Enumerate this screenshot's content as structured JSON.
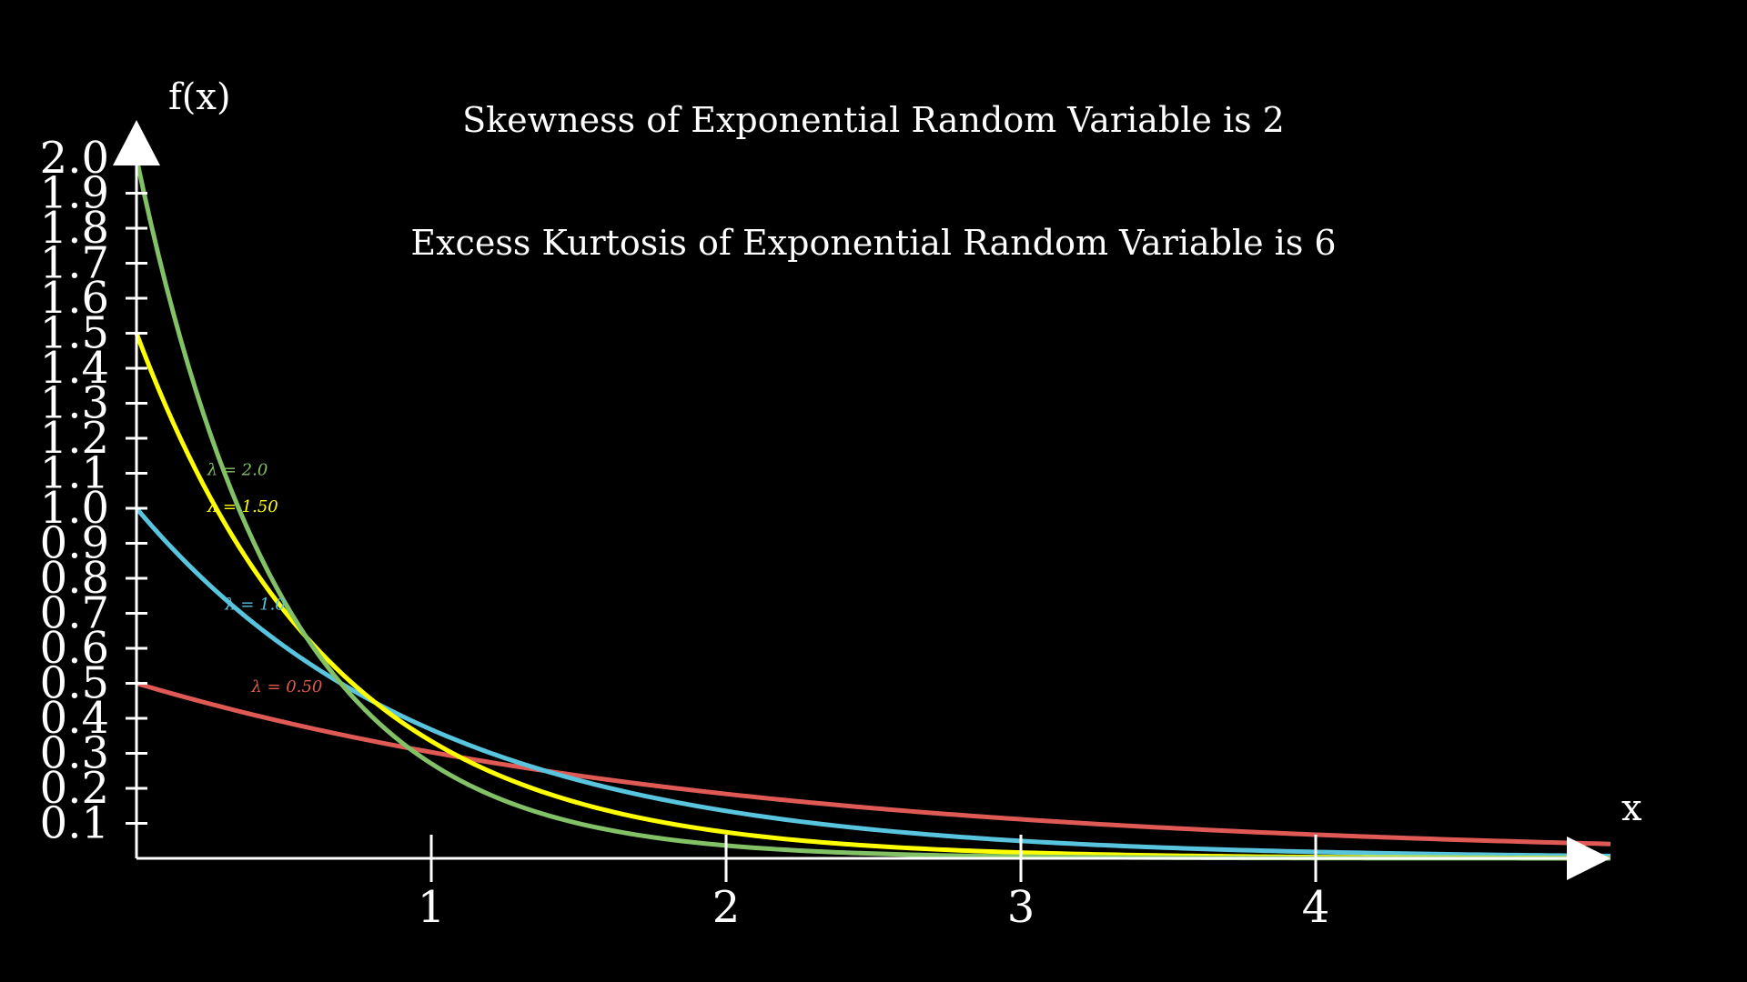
{
  "chart_data": {
    "type": "line",
    "titles": [
      "Skewness of Exponential Random Variable is 2",
      "Excess Kurtosis of Exponential Random Variable is 6"
    ],
    "xlabel": "x",
    "ylabel": "f(x)",
    "xlim": [
      0,
      5
    ],
    "ylim": [
      0,
      2.0
    ],
    "x_ticks": [
      1,
      2,
      3,
      4
    ],
    "x_tick_labels": [
      "1",
      "2",
      "3",
      "4"
    ],
    "y_ticks": [
      0.1,
      0.2,
      0.3,
      0.4,
      0.5,
      0.6,
      0.7,
      0.8,
      0.9,
      1.0,
      1.1,
      1.2,
      1.3,
      1.4,
      1.5,
      1.6,
      1.7,
      1.8,
      1.9,
      2.0
    ],
    "y_tick_labels": [
      "0.1",
      "0.2",
      "0.3",
      "0.4",
      "0.5",
      "0.6",
      "0.7",
      "0.8",
      "0.9",
      "1.0",
      "1.1",
      "1.2",
      "1.3",
      "1.4",
      "1.5",
      "1.6",
      "1.7",
      "1.8",
      "1.9",
      "2.0"
    ],
    "grid": false,
    "legend": "inline labels near curves",
    "series": [
      {
        "name": "λ = 0.50",
        "lambda": 0.5,
        "color": "#e05a55"
      },
      {
        "name": "λ = 1.0",
        "lambda": 1.0,
        "color": "#58c4dd"
      },
      {
        "name": "λ = 1.50",
        "lambda": 1.5,
        "color": "#ffff00"
      },
      {
        "name": "λ = 2.0",
        "lambda": 2.0,
        "color": "#83c167"
      }
    ],
    "function": "f(x) = λ·e^(−λx)",
    "colors": {
      "background": "#000000",
      "axes": "#ffffff"
    }
  }
}
